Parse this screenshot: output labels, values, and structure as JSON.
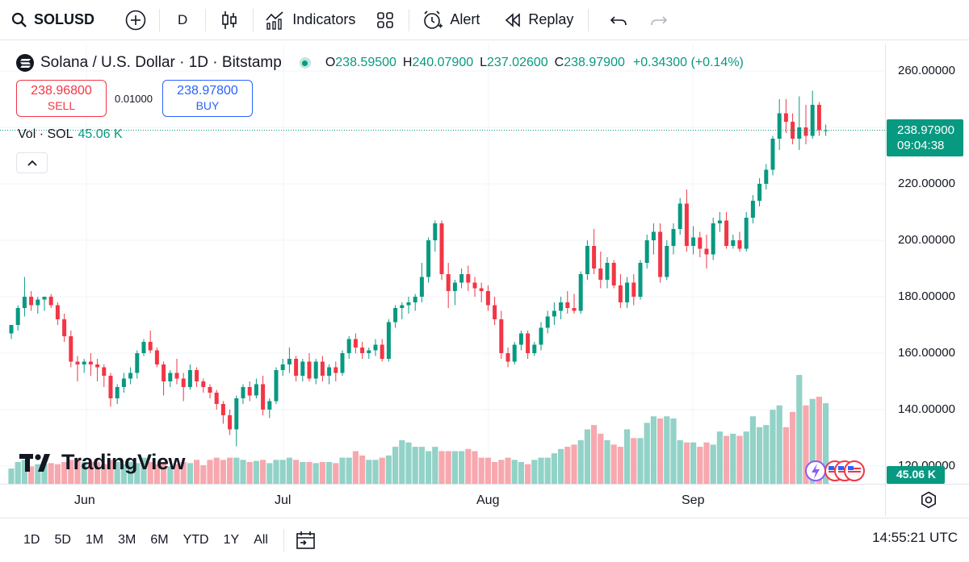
{
  "toolbar": {
    "symbol": "SOLUSD",
    "interval": "D",
    "indicators_label": "Indicators",
    "alert_label": "Alert",
    "replay_label": "Replay"
  },
  "legend": {
    "title": "Solana / U.S. Dollar · 1D · Bitstamp",
    "open_key": "O",
    "open": "238.59500",
    "high_key": "H",
    "high": "240.07900",
    "low_key": "L",
    "low": "237.02600",
    "close_key": "C",
    "close": "238.97900",
    "change": "+0.34300 (+0.14%)"
  },
  "trade": {
    "sell_price": "238.96800",
    "sell_label": "SELL",
    "spread": "0.01000",
    "buy_price": "238.97800",
    "buy_label": "BUY"
  },
  "volume_legend": {
    "label": "Vol · SOL",
    "value": "45.06 K"
  },
  "price_scale": {
    "ticks": [
      "260.00000",
      "220.00000",
      "200.00000",
      "180.00000",
      "160.00000",
      "140.00000",
      "120.00000"
    ],
    "current_price": "238.97900",
    "countdown": "09:04:38",
    "volume_tag": "45.06 K"
  },
  "time_axis": [
    "Jun",
    "Jul",
    "Aug",
    "Sep"
  ],
  "watermark": "TradingView",
  "bottom_bar": {
    "ranges": [
      "1D",
      "5D",
      "1M",
      "3M",
      "6M",
      "YTD",
      "1Y",
      "All"
    ],
    "clock": "14:55:21 UTC"
  },
  "colors": {
    "up": "#089981",
    "down": "#f23645",
    "up_vol": "#92d2c7",
    "down_vol": "#f7a8ae",
    "accent": "#2962ff"
  },
  "chart_data": {
    "type": "candlestick",
    "symbol": "SOLUSD",
    "ylim": [
      120,
      265
    ],
    "x_ticks": [
      "Jun",
      "Jul",
      "Aug",
      "Sep"
    ],
    "candles": [
      [
        167,
        170,
        165,
        170
      ],
      [
        170,
        177,
        168,
        176
      ],
      [
        176,
        187,
        173,
        180
      ],
      [
        180,
        182,
        175,
        177
      ],
      [
        177,
        180,
        174,
        179
      ],
      [
        179,
        180,
        175,
        180
      ],
      [
        180,
        181,
        176,
        177
      ],
      [
        177,
        178,
        170,
        172
      ],
      [
        172,
        174,
        164,
        166
      ],
      [
        166,
        168,
        155,
        157
      ],
      [
        157,
        159,
        150,
        156
      ],
      [
        156,
        158,
        153,
        157
      ],
      [
        157,
        160,
        152,
        156
      ],
      [
        156,
        158,
        150,
        155
      ],
      [
        155,
        156,
        148,
        152
      ],
      [
        152,
        153,
        141,
        144
      ],
      [
        144,
        149,
        142,
        148
      ],
      [
        148,
        153,
        146,
        151
      ],
      [
        151,
        155,
        149,
        153
      ],
      [
        153,
        161,
        151,
        160
      ],
      [
        160,
        165,
        159,
        164
      ],
      [
        164,
        168,
        160,
        161
      ],
      [
        161,
        162,
        155,
        156
      ],
      [
        156,
        157,
        145,
        150
      ],
      [
        150,
        154,
        148,
        153
      ],
      [
        153,
        158,
        149,
        151
      ],
      [
        151,
        153,
        143,
        148
      ],
      [
        148,
        156,
        147,
        154
      ],
      [
        154,
        155,
        148,
        150
      ],
      [
        150,
        151,
        146,
        148
      ],
      [
        148,
        149,
        144,
        146
      ],
      [
        146,
        147,
        140,
        142
      ],
      [
        142,
        143,
        135,
        138
      ],
      [
        138,
        140,
        131,
        133
      ],
      [
        133,
        145,
        127,
        144
      ],
      [
        144,
        149,
        142,
        148
      ],
      [
        148,
        150,
        143,
        145
      ],
      [
        145,
        151,
        144,
        149
      ],
      [
        149,
        152,
        138,
        140
      ],
      [
        140,
        144,
        137,
        143
      ],
      [
        143,
        155,
        142,
        154
      ],
      [
        154,
        158,
        152,
        156
      ],
      [
        156,
        162,
        153,
        158
      ],
      [
        158,
        159,
        150,
        152
      ],
      [
        152,
        158,
        150,
        157
      ],
      [
        157,
        160,
        150,
        151
      ],
      [
        151,
        158,
        149,
        157
      ],
      [
        157,
        159,
        150,
        152
      ],
      [
        152,
        156,
        149,
        155
      ],
      [
        155,
        157,
        150,
        153
      ],
      [
        153,
        161,
        152,
        160
      ],
      [
        160,
        166,
        158,
        165
      ],
      [
        165,
        167,
        160,
        162
      ],
      [
        162,
        164,
        158,
        160
      ],
      [
        160,
        162,
        158,
        161
      ],
      [
        161,
        165,
        159,
        163
      ],
      [
        163,
        165,
        157,
        158
      ],
      [
        158,
        172,
        157,
        171
      ],
      [
        171,
        177,
        169,
        176
      ],
      [
        176,
        178,
        172,
        177
      ],
      [
        177,
        180,
        174,
        178
      ],
      [
        178,
        181,
        175,
        180
      ],
      [
        180,
        192,
        178,
        187
      ],
      [
        187,
        201,
        185,
        200
      ],
      [
        200,
        207,
        196,
        206
      ],
      [
        206,
        207,
        186,
        188
      ],
      [
        188,
        192,
        176,
        182
      ],
      [
        182,
        186,
        177,
        185
      ],
      [
        185,
        190,
        183,
        188
      ],
      [
        188,
        191,
        182,
        185
      ],
      [
        185,
        187,
        180,
        183
      ],
      [
        183,
        185,
        178,
        182
      ],
      [
        182,
        184,
        175,
        177
      ],
      [
        177,
        180,
        170,
        172
      ],
      [
        172,
        175,
        158,
        160
      ],
      [
        160,
        162,
        155,
        157
      ],
      [
        157,
        164,
        156,
        163
      ],
      [
        163,
        168,
        161,
        167
      ],
      [
        167,
        168,
        158,
        160
      ],
      [
        160,
        164,
        159,
        163
      ],
      [
        163,
        171,
        161,
        169
      ],
      [
        169,
        175,
        167,
        173
      ],
      [
        173,
        178,
        170,
        175
      ],
      [
        175,
        180,
        172,
        178
      ],
      [
        178,
        182,
        174,
        176
      ],
      [
        176,
        181,
        174,
        175
      ],
      [
        175,
        189,
        174,
        188
      ],
      [
        188,
        200,
        186,
        198
      ],
      [
        198,
        204,
        188,
        190
      ],
      [
        190,
        196,
        183,
        186
      ],
      [
        186,
        194,
        183,
        192
      ],
      [
        192,
        193,
        183,
        184
      ],
      [
        184,
        188,
        176,
        178
      ],
      [
        178,
        187,
        176,
        185
      ],
      [
        185,
        188,
        177,
        180
      ],
      [
        180,
        193,
        179,
        192
      ],
      [
        192,
        202,
        190,
        200
      ],
      [
        200,
        206,
        195,
        203
      ],
      [
        203,
        206,
        185,
        187
      ],
      [
        187,
        200,
        186,
        198
      ],
      [
        198,
        206,
        195,
        204
      ],
      [
        204,
        215,
        202,
        213
      ],
      [
        213,
        218,
        196,
        198
      ],
      [
        198,
        205,
        195,
        201
      ],
      [
        201,
        203,
        194,
        197
      ],
      [
        197,
        202,
        190,
        195
      ],
      [
        195,
        208,
        193,
        206
      ],
      [
        206,
        210,
        203,
        207
      ],
      [
        207,
        210,
        197,
        198
      ],
      [
        198,
        202,
        197,
        200
      ],
      [
        200,
        203,
        196,
        197
      ],
      [
        197,
        210,
        196,
        208
      ],
      [
        208,
        216,
        206,
        214
      ],
      [
        214,
        222,
        212,
        220
      ],
      [
        220,
        227,
        218,
        225
      ],
      [
        225,
        237,
        223,
        236
      ],
      [
        236,
        250,
        232,
        245
      ],
      [
        245,
        250,
        238,
        242
      ],
      [
        242,
        245,
        234,
        236
      ],
      [
        236,
        251,
        232,
        240
      ],
      [
        240,
        248,
        234,
        237
      ],
      [
        237,
        253,
        236,
        248
      ],
      [
        248,
        249,
        237,
        239
      ],
      [
        239,
        241,
        237,
        239
      ]
    ],
    "volume_level_0_to_1": [
      0.14,
      0.2,
      0.22,
      0.16,
      0.18,
      0.18,
      0.19,
      0.18,
      0.2,
      0.22,
      0.24,
      0.2,
      0.2,
      0.2,
      0.18,
      0.22,
      0.2,
      0.18,
      0.2,
      0.19,
      0.24,
      0.2,
      0.18,
      0.2,
      0.16,
      0.18,
      0.2,
      0.19,
      0.22,
      0.17,
      0.22,
      0.24,
      0.22,
      0.24,
      0.24,
      0.22,
      0.2,
      0.21,
      0.22,
      0.19,
      0.22,
      0.22,
      0.24,
      0.22,
      0.2,
      0.2,
      0.19,
      0.2,
      0.2,
      0.19,
      0.24,
      0.24,
      0.3,
      0.26,
      0.22,
      0.22,
      0.24,
      0.26,
      0.34,
      0.4,
      0.38,
      0.34,
      0.34,
      0.3,
      0.34,
      0.3,
      0.3,
      0.3,
      0.3,
      0.32,
      0.3,
      0.24,
      0.24,
      0.2,
      0.22,
      0.24,
      0.22,
      0.2,
      0.18,
      0.22,
      0.24,
      0.24,
      0.28,
      0.32,
      0.34,
      0.36,
      0.4,
      0.5,
      0.54,
      0.46,
      0.4,
      0.36,
      0.34,
      0.5,
      0.42,
      0.42,
      0.56,
      0.62,
      0.6,
      0.62,
      0.6,
      0.4,
      0.38,
      0.38,
      0.34,
      0.38,
      0.36,
      0.48,
      0.44,
      0.46,
      0.44,
      0.48,
      0.62,
      0.52,
      0.54,
      0.68,
      0.72,
      0.52,
      0.66,
      1.0,
      0.72,
      0.78,
      0.8,
      0.74,
      0.9
    ]
  }
}
